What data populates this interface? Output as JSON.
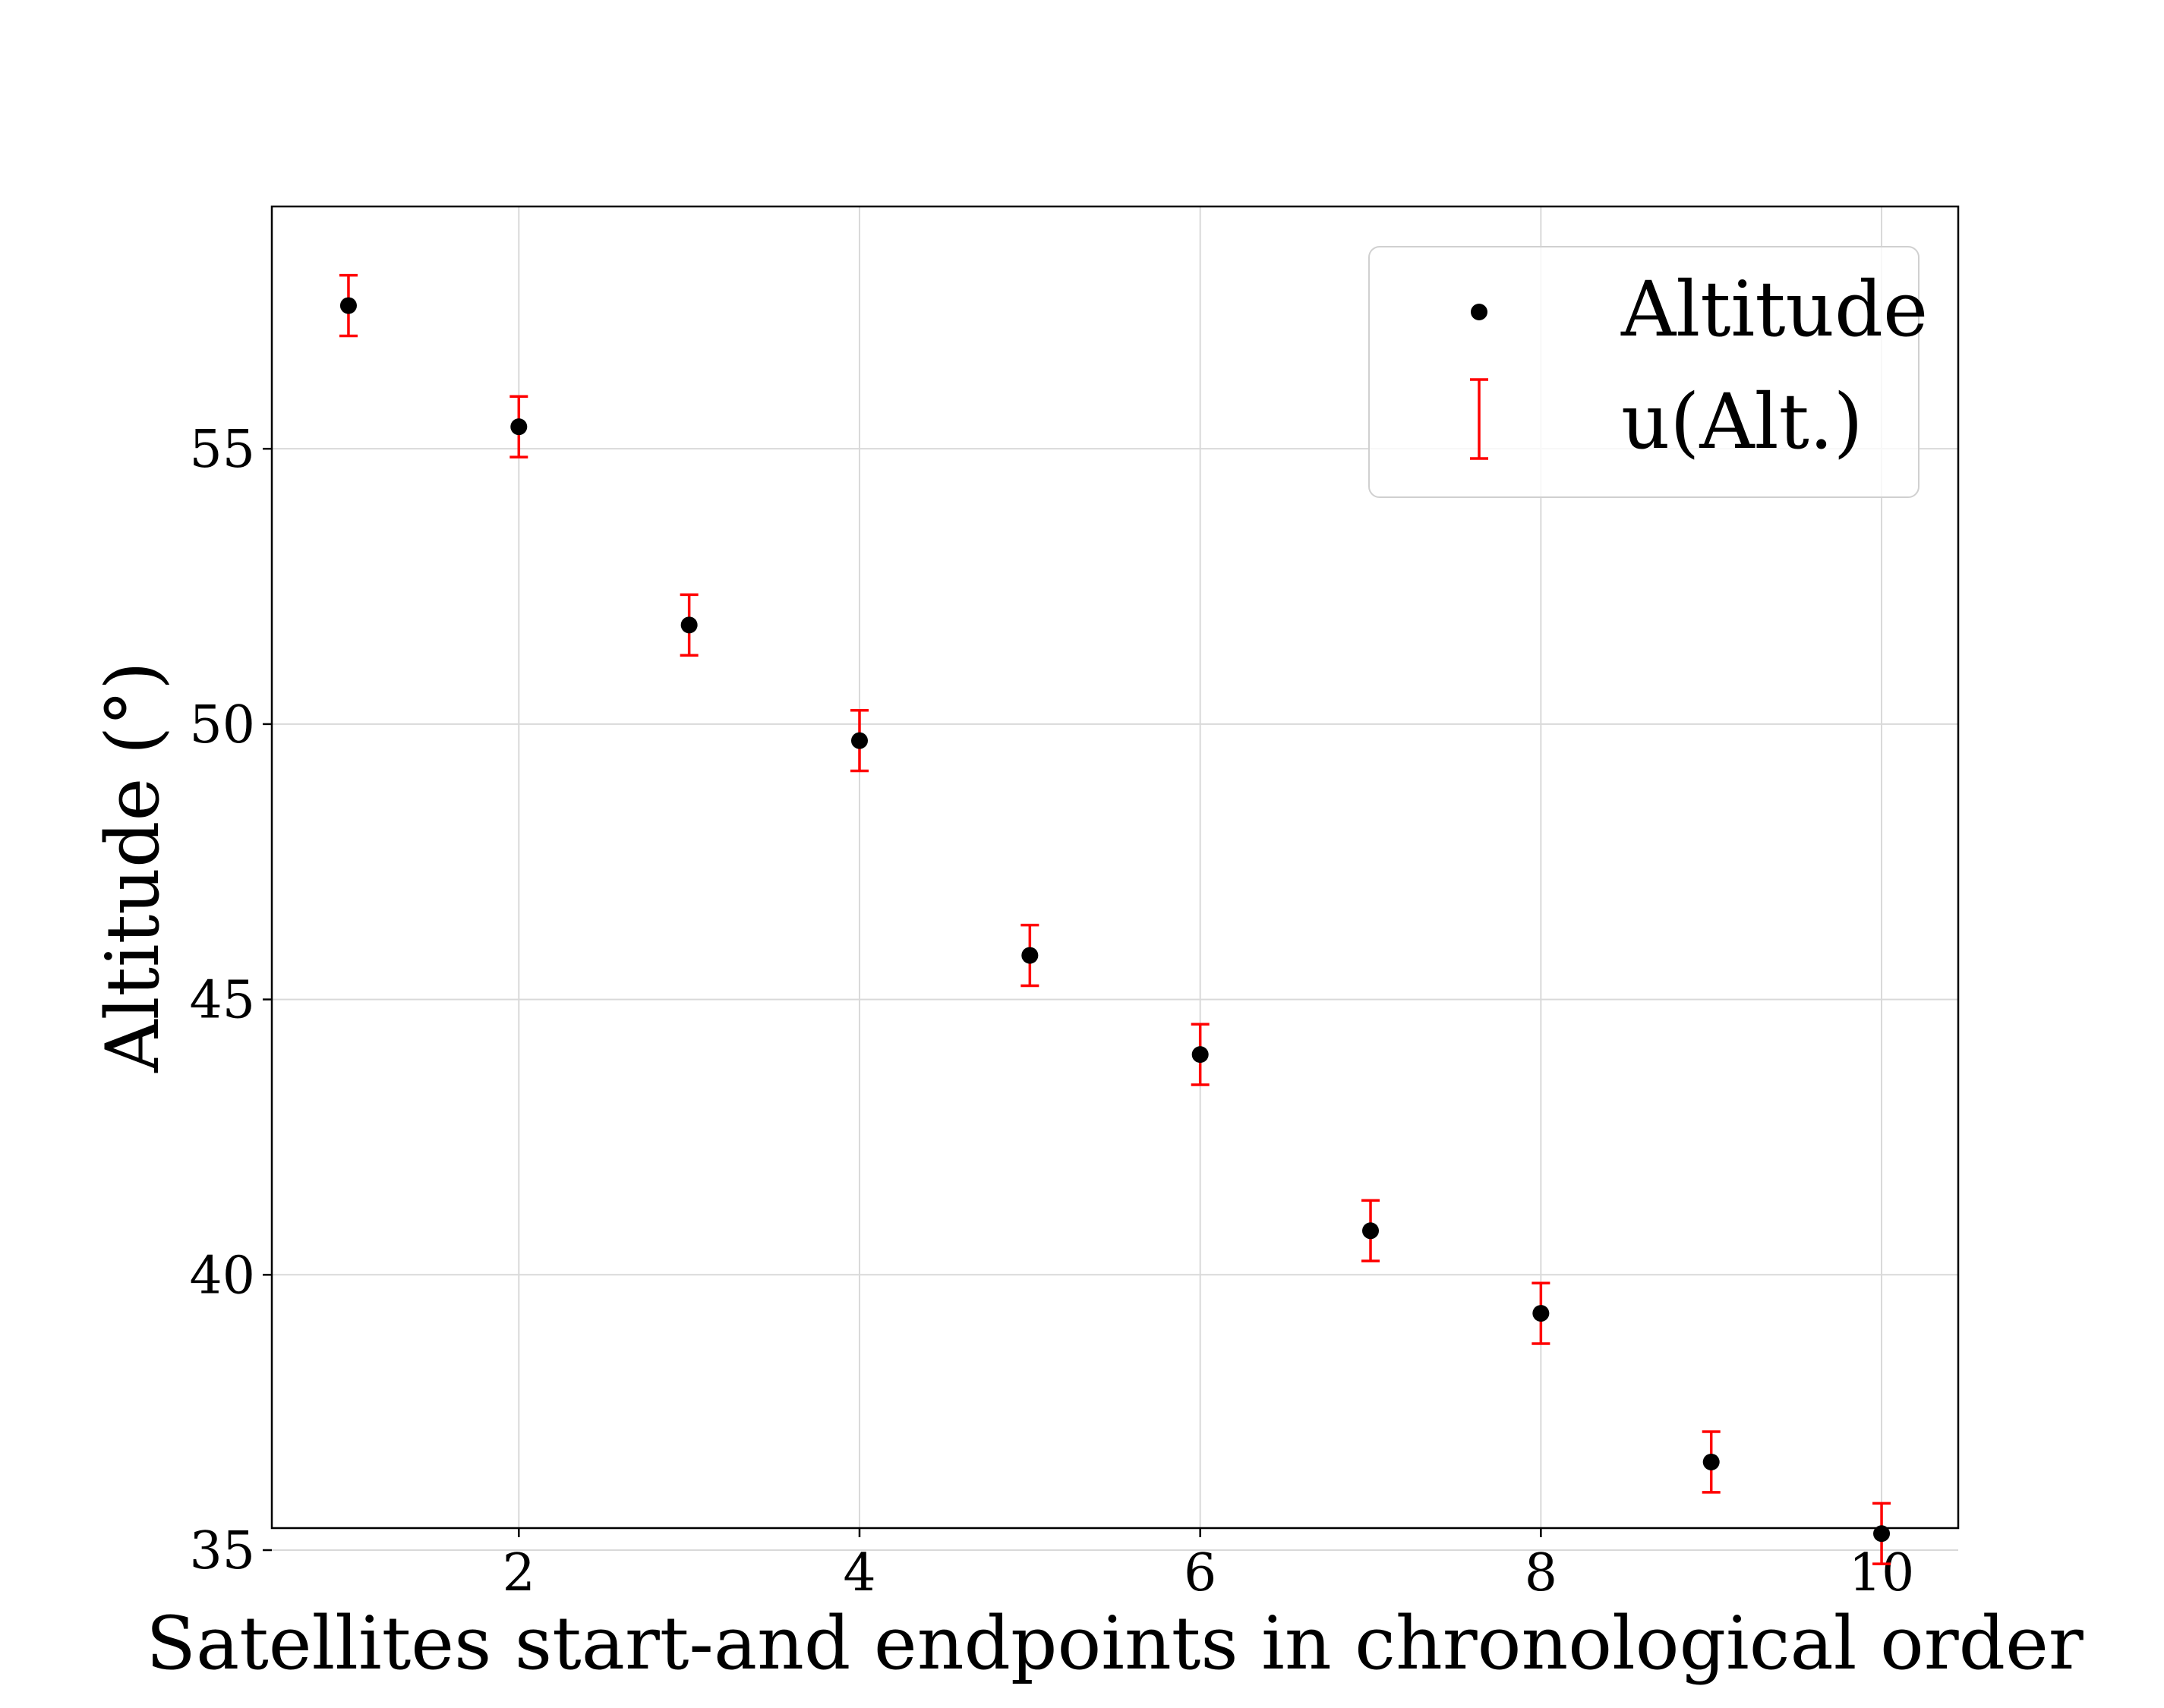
{
  "chart_data": {
    "type": "scatter",
    "title": "",
    "xlabel": "Satellites start-and endpoints in chronological order",
    "ylabel": "Altitude (°)",
    "xlim": [
      0.55,
      10.45
    ],
    "ylim": [
      35.4,
      59.4
    ],
    "xticks": [
      2,
      4,
      6,
      8,
      10
    ],
    "xtick_labels": [
      "2",
      "4",
      "6",
      "8",
      "10"
    ],
    "yticks": [
      35,
      40,
      45,
      50,
      55
    ],
    "ytick_labels": [
      "35",
      "40",
      "45",
      "50",
      "55"
    ],
    "grid": true,
    "legend": {
      "position": "top-right",
      "entries": [
        "Altitude",
        "u(Alt.)"
      ]
    },
    "colors": {
      "points": "#000000",
      "errorbars": "#ff0000",
      "grid": "#d9d9d9",
      "axes": "#000000"
    },
    "series": [
      {
        "name": "Altitude",
        "x": [
          1,
          2,
          3,
          4,
          5,
          6,
          7,
          8,
          9,
          10
        ],
        "y": [
          57.6,
          55.4,
          51.8,
          49.7,
          45.8,
          44.0,
          40.8,
          39.3,
          36.6,
          35.3
        ],
        "error_name": "u(Alt.)",
        "error": [
          0.55,
          0.55,
          0.55,
          0.55,
          0.55,
          0.55,
          0.55,
          0.55,
          0.55,
          0.55
        ]
      }
    ]
  }
}
